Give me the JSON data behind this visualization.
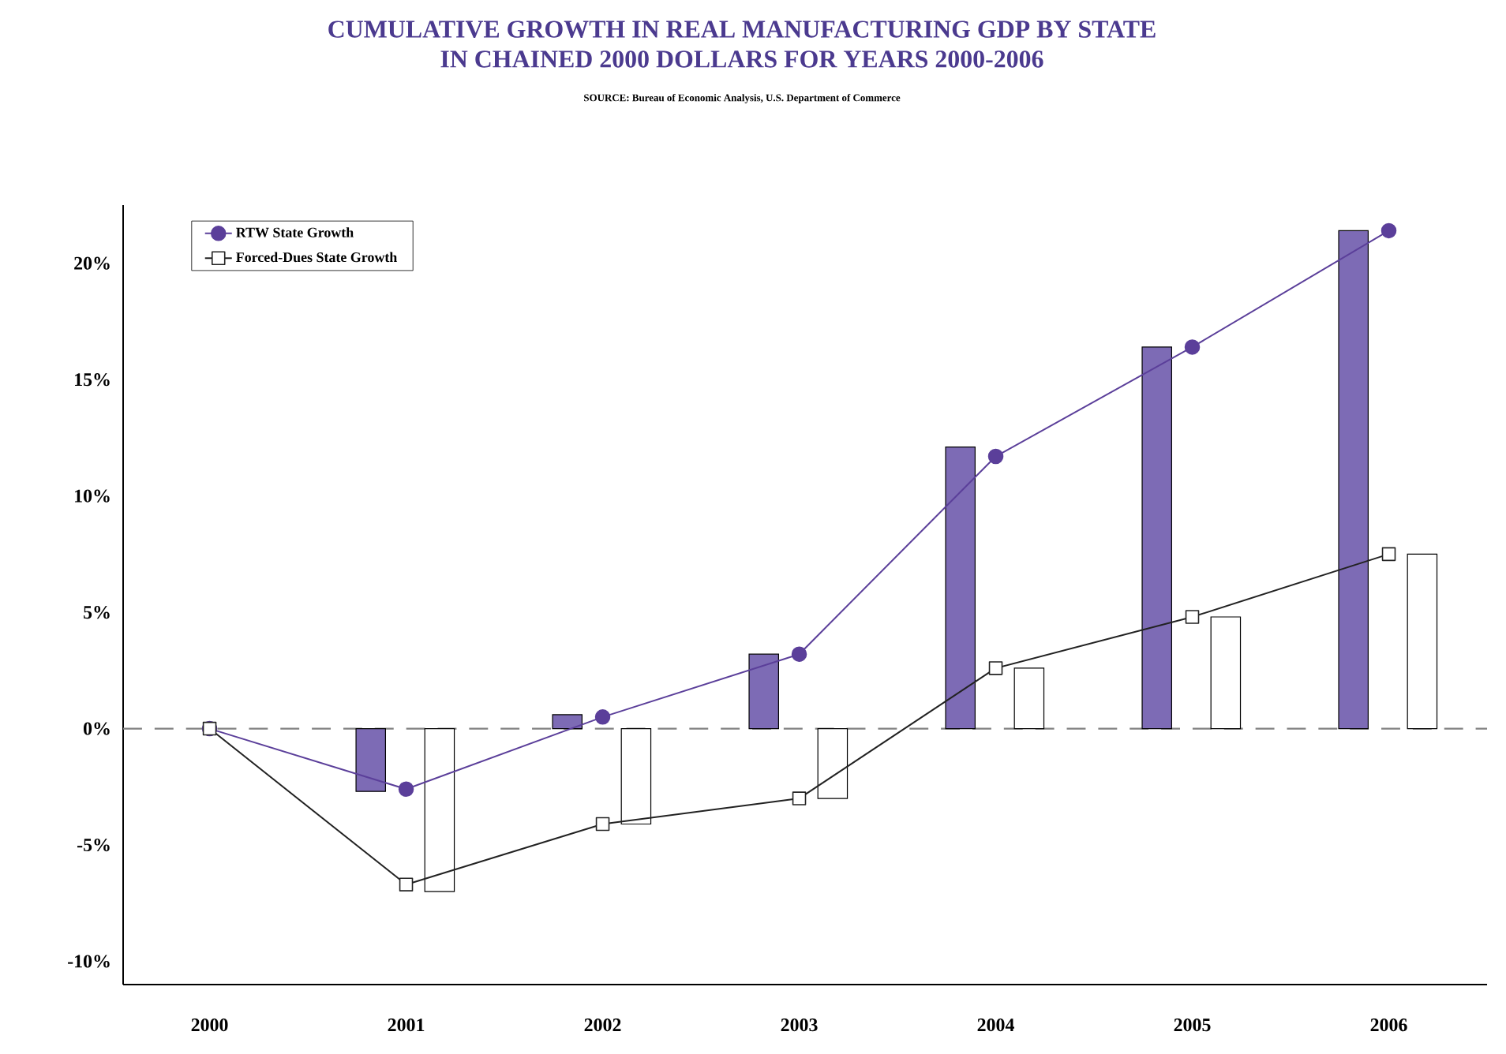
{
  "chart_data": {
    "type": "line",
    "title": "CUMULATIVE GROWTH IN REAL MANUFACTURING GDP BY STATE\nIN CHAINED 2000 DOLLARS FOR YEARS 2000-2006",
    "annotations": [
      "SOURCE: Bureau of Economic Analysis, U.S. Department of Commerce"
    ],
    "categories": [
      "2000",
      "2001",
      "2002",
      "2003",
      "2004",
      "2005",
      "2006"
    ],
    "series": [
      {
        "type": "bar",
        "color": "#7d6bb5",
        "values": [
          null,
          -2.7,
          0.6,
          3.2,
          12.1,
          16.4,
          21.4
        ]
      },
      {
        "type": "bar",
        "color": "#ffffff",
        "values": [
          null,
          -7.0,
          -4.1,
          -3.0,
          2.6,
          4.8,
          7.5
        ]
      },
      {
        "name": "RTW State Growth",
        "color": "#5b3f9a",
        "marker": "circle",
        "values": [
          0,
          -2.6,
          0.5,
          3.2,
          11.7,
          16.4,
          21.4
        ]
      },
      {
        "name": "Forced-Dues State Growth",
        "color": "#222222",
        "marker": "square",
        "values": [
          0,
          -6.7,
          -4.1,
          -3.0,
          2.6,
          4.8,
          7.5
        ]
      }
    ],
    "ylim": [
      -11,
      22.5
    ],
    "yticks": [
      {
        "value": -10,
        "label": "-10%"
      },
      {
        "value": -5,
        "label": "-5%"
      },
      {
        "value": 0,
        "label": "0%"
      },
      {
        "value": 5,
        "label": "5%"
      },
      {
        "value": 10,
        "label": "10%"
      },
      {
        "value": 15,
        "label": "15%"
      },
      {
        "value": 20,
        "label": "20%"
      }
    ],
    "ref_lines": [
      {
        "axis": "y",
        "value": 0,
        "color": "#808080",
        "line_style": "dashed"
      }
    ],
    "legend": "top left"
  }
}
